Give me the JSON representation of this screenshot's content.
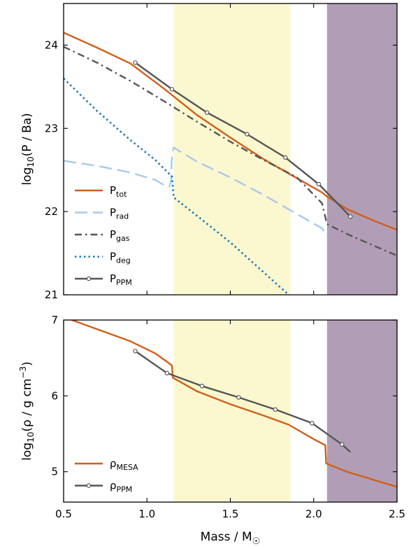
{
  "chart_data": [
    {
      "type": "line",
      "ylabel": "log10(P / Ba)",
      "ylabel_parts": {
        "pre": "log",
        "sub": "10",
        "post": "(P / Ba)"
      },
      "xlim": [
        0.5,
        2.5
      ],
      "ylim": [
        21,
        24.5
      ],
      "xticks": [
        0.5,
        1.0,
        1.5,
        2.0,
        2.5
      ],
      "yticks": [
        21,
        22,
        23,
        24
      ],
      "ytick_labels": [
        "21",
        "22",
        "23",
        "24"
      ],
      "grid": false,
      "legend_position": "lower-left",
      "shaded_regions": [
        {
          "x": [
            1.16,
            1.86
          ],
          "color": "#fbf8cf"
        },
        {
          "x": [
            2.08,
            2.5
          ],
          "color": "#b19eb6"
        }
      ],
      "series": [
        {
          "name": "Ptot",
          "label_main": "P",
          "label_sub": "tot",
          "color": "#d15f1a",
          "style": "solid",
          "marker": false,
          "x": [
            0.5,
            0.7,
            0.9,
            1.1,
            1.3,
            1.5,
            1.7,
            1.9,
            2.05,
            2.08,
            2.2,
            2.35,
            2.5
          ],
          "y": [
            24.15,
            23.97,
            23.78,
            23.48,
            23.16,
            22.89,
            22.63,
            22.4,
            22.23,
            22.18,
            22.03,
            21.9,
            21.78
          ]
        },
        {
          "name": "Prad",
          "label_main": "P",
          "label_sub": "rad",
          "color": "#a9c9ec",
          "style": "dashed",
          "marker": false,
          "x": [
            0.5,
            0.7,
            0.9,
            1.05,
            1.11,
            1.135,
            1.145,
            1.148,
            1.155,
            1.16,
            1.3,
            1.5,
            1.7,
            1.9,
            2.05,
            2.08
          ],
          "y": [
            22.61,
            22.55,
            22.47,
            22.38,
            22.31,
            22.3,
            22.38,
            22.6,
            22.73,
            22.77,
            22.6,
            22.41,
            22.2,
            21.97,
            21.8,
            21.7
          ]
        },
        {
          "name": "Pgas",
          "label_main": "P",
          "label_sub": "gas",
          "color": "#555555",
          "style": "dashdot",
          "marker": false,
          "x": [
            0.5,
            0.7,
            0.9,
            1.1,
            1.3,
            1.5,
            1.7,
            1.9,
            2.05,
            2.08,
            2.2,
            2.35,
            2.5
          ],
          "y": [
            23.98,
            23.79,
            23.57,
            23.33,
            23.08,
            22.84,
            22.62,
            22.41,
            22.1,
            21.85,
            21.73,
            21.6,
            21.47
          ]
        },
        {
          "name": "Pdeg",
          "label_main": "P",
          "label_sub": "deg",
          "color": "#1a78b8",
          "style": "dotted",
          "marker": false,
          "x": [
            0.5,
            0.7,
            0.9,
            1.05,
            1.12,
            1.15,
            1.155,
            1.16,
            1.3,
            1.5,
            1.7,
            1.85
          ],
          "y": [
            23.6,
            23.21,
            22.86,
            22.62,
            22.48,
            22.42,
            22.3,
            22.17,
            21.95,
            21.63,
            21.27,
            21.0
          ]
        },
        {
          "name": "PPPM",
          "label_main": "P",
          "label_sub": "PPM",
          "color": "#555555",
          "style": "solid",
          "marker": true,
          "x": [
            0.93,
            1.15,
            1.36,
            1.6,
            1.83,
            2.03,
            2.22
          ],
          "y": [
            23.79,
            23.47,
            23.19,
            22.93,
            22.65,
            22.33,
            21.94
          ]
        }
      ]
    },
    {
      "type": "line",
      "xlabel": "Mass / M☉",
      "xlabel_parts": {
        "pre": "Mass / M",
        "sub": "☉"
      },
      "ylabel": "log10(ρ / g cm−3)",
      "ylabel_parts": {
        "pre": "log",
        "sub": "10",
        "post": "(ρ / g cm",
        "sup": "−3",
        "end": ")"
      },
      "xlim": [
        0.5,
        2.5
      ],
      "ylim": [
        4.6,
        7.0
      ],
      "xticks": [
        0.5,
        1.0,
        1.5,
        2.0,
        2.5
      ],
      "xtick_labels": [
        "0.5",
        "1.0",
        "1.5",
        "2.0",
        "2.5"
      ],
      "yticks": [
        5,
        6,
        7
      ],
      "ytick_labels": [
        "5",
        "6",
        "7"
      ],
      "grid": false,
      "legend_position": "lower-left",
      "shaded_regions": [
        {
          "x": [
            1.16,
            1.86
          ],
          "color": "#fbf8cf"
        },
        {
          "x": [
            2.08,
            2.5
          ],
          "color": "#b19eb6"
        }
      ],
      "series": [
        {
          "name": "ρMESA",
          "label_main": "ρ",
          "label_sub": "MESA",
          "color": "#d15f1a",
          "style": "solid",
          "marker": false,
          "x": [
            0.5,
            0.55,
            0.7,
            0.9,
            1.05,
            1.12,
            1.15,
            1.155,
            1.3,
            1.5,
            1.7,
            1.85,
            2.0,
            2.07,
            2.075,
            2.2,
            2.35,
            2.5
          ],
          "y": [
            7.05,
            7.0,
            6.88,
            6.72,
            6.56,
            6.45,
            6.4,
            6.24,
            6.06,
            5.89,
            5.74,
            5.62,
            5.43,
            5.35,
            5.11,
            5.0,
            4.9,
            4.8
          ]
        },
        {
          "name": "ρPPM",
          "label_main": "ρ",
          "label_sub": "PPM",
          "color": "#555555",
          "style": "solid",
          "marker": true,
          "x": [
            0.93,
            1.12,
            1.33,
            1.55,
            1.77,
            1.99,
            2.17,
            2.22
          ],
          "y": [
            6.59,
            6.3,
            6.13,
            5.98,
            5.82,
            5.64,
            5.36,
            5.26
          ],
          "marker_count": 7
        }
      ]
    }
  ]
}
